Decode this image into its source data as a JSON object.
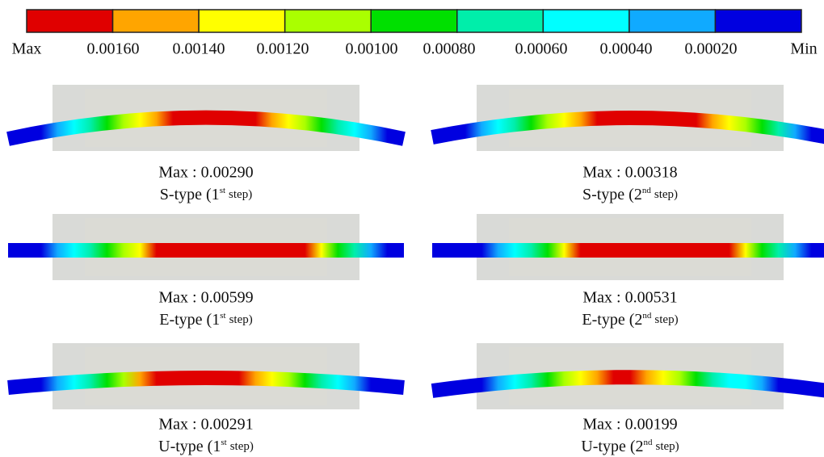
{
  "legend": {
    "colors": [
      "#e00000",
      "#ffa500",
      "#ffff00",
      "#aaff00",
      "#00e000",
      "#00eeaa",
      "#00ffff",
      "#10aaff",
      "#0000e0"
    ],
    "labels": [
      "Max",
      "0.00160",
      "0.00140",
      "0.00120",
      "0.00100",
      "0.00080",
      "0.00060",
      "0.00040",
      "0.00020",
      "Min"
    ]
  },
  "panels": [
    {
      "max": "Max : 0.00290",
      "type": "S-type (1",
      "sup": "st",
      "step": "step)"
    },
    {
      "max": "Max : 0.00318",
      "type": "S-type (2",
      "sup": "nd",
      "step": "step)"
    },
    {
      "max": "Max : 0.00599",
      "type": "E-type (1",
      "sup": "st",
      "step": "step)"
    },
    {
      "max": "Max : 0.00531",
      "type": "E-type (2",
      "sup": "nd",
      "step": "step)"
    },
    {
      "max": "Max : 0.00291",
      "type": "U-type (1",
      "sup": "st",
      "step": "step)"
    },
    {
      "max": "Max : 0.00199",
      "type": "U-type (2",
      "sup": "nd",
      "step": "step)"
    }
  ]
}
